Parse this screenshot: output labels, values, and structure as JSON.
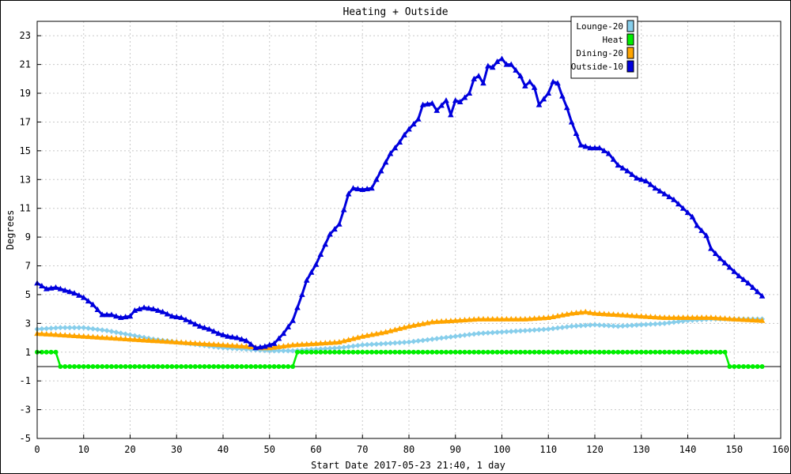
{
  "chart_data": {
    "type": "line",
    "title": "Heating + Outside",
    "xlabel": "Start Date 2017-05-23 21:40, 1 day",
    "ylabel": "Degrees",
    "xlim": [
      0,
      160
    ],
    "ylim": [
      -5,
      24
    ],
    "x_ticks": [
      0,
      10,
      20,
      30,
      40,
      50,
      60,
      70,
      80,
      90,
      100,
      110,
      120,
      130,
      140,
      150,
      160
    ],
    "y_ticks": [
      -5,
      -3,
      -1,
      1,
      3,
      5,
      7,
      9,
      11,
      13,
      15,
      17,
      19,
      21,
      23
    ],
    "grid": true,
    "zero_line": true,
    "legend_position": "top-right",
    "series": [
      {
        "name": "Lounge-20",
        "color": "#87ceeb",
        "marker": "diamond",
        "points": [
          [
            0,
            2.6
          ],
          [
            5,
            2.7
          ],
          [
            10,
            2.7
          ],
          [
            15,
            2.5
          ],
          [
            20,
            2.2
          ],
          [
            25,
            1.9
          ],
          [
            30,
            1.7
          ],
          [
            35,
            1.5
          ],
          [
            40,
            1.3
          ],
          [
            45,
            1.2
          ],
          [
            50,
            1.1
          ],
          [
            55,
            1.1
          ],
          [
            60,
            1.2
          ],
          [
            65,
            1.3
          ],
          [
            70,
            1.5
          ],
          [
            75,
            1.6
          ],
          [
            80,
            1.7
          ],
          [
            85,
            1.9
          ],
          [
            90,
            2.1
          ],
          [
            95,
            2.3
          ],
          [
            100,
            2.4
          ],
          [
            105,
            2.5
          ],
          [
            110,
            2.6
          ],
          [
            115,
            2.8
          ],
          [
            120,
            2.9
          ],
          [
            125,
            2.8
          ],
          [
            130,
            2.9
          ],
          [
            135,
            3.0
          ],
          [
            140,
            3.2
          ],
          [
            145,
            3.3
          ],
          [
            150,
            3.3
          ],
          [
            156,
            3.3
          ]
        ]
      },
      {
        "name": "Heat",
        "color": "#00ee00",
        "marker": "circle",
        "points": [
          [
            0,
            1
          ],
          [
            4,
            1
          ],
          [
            5,
            0
          ],
          [
            55,
            0
          ],
          [
            56,
            1
          ],
          [
            148,
            1
          ],
          [
            149,
            0
          ],
          [
            156,
            0
          ]
        ]
      },
      {
        "name": "Dining-20",
        "color": "#ffa500",
        "marker": "triangle",
        "points": [
          [
            0,
            2.3
          ],
          [
            5,
            2.2
          ],
          [
            10,
            2.1
          ],
          [
            15,
            2.0
          ],
          [
            20,
            1.9
          ],
          [
            25,
            1.8
          ],
          [
            30,
            1.7
          ],
          [
            35,
            1.6
          ],
          [
            40,
            1.5
          ],
          [
            45,
            1.4
          ],
          [
            48,
            1.3
          ],
          [
            50,
            1.3
          ],
          [
            55,
            1.5
          ],
          [
            60,
            1.6
          ],
          [
            65,
            1.7
          ],
          [
            70,
            2.1
          ],
          [
            75,
            2.4
          ],
          [
            80,
            2.8
          ],
          [
            85,
            3.1
          ],
          [
            90,
            3.2
          ],
          [
            95,
            3.3
          ],
          [
            100,
            3.3
          ],
          [
            105,
            3.3
          ],
          [
            110,
            3.4
          ],
          [
            115,
            3.7
          ],
          [
            118,
            3.8
          ],
          [
            120,
            3.7
          ],
          [
            125,
            3.6
          ],
          [
            130,
            3.5
          ],
          [
            135,
            3.4
          ],
          [
            140,
            3.4
          ],
          [
            145,
            3.4
          ],
          [
            150,
            3.3
          ],
          [
            156,
            3.2
          ]
        ]
      },
      {
        "name": "Outside-10",
        "color": "#0000dd",
        "marker": "triangle",
        "points": [
          [
            0,
            5.8
          ],
          [
            2,
            5.4
          ],
          [
            4,
            5.5
          ],
          [
            6,
            5.3
          ],
          [
            8,
            5.1
          ],
          [
            10,
            4.8
          ],
          [
            12,
            4.3
          ],
          [
            14,
            3.6
          ],
          [
            16,
            3.6
          ],
          [
            18,
            3.4
          ],
          [
            20,
            3.5
          ],
          [
            21,
            3.9
          ],
          [
            23,
            4.1
          ],
          [
            25,
            4.0
          ],
          [
            27,
            3.8
          ],
          [
            29,
            3.5
          ],
          [
            31,
            3.4
          ],
          [
            33,
            3.1
          ],
          [
            35,
            2.8
          ],
          [
            37,
            2.6
          ],
          [
            39,
            2.3
          ],
          [
            41,
            2.1
          ],
          [
            43,
            2.0
          ],
          [
            45,
            1.8
          ],
          [
            47,
            1.3
          ],
          [
            49,
            1.4
          ],
          [
            51,
            1.6
          ],
          [
            53,
            2.3
          ],
          [
            55,
            3.2
          ],
          [
            56,
            4.1
          ],
          [
            57,
            5.0
          ],
          [
            58,
            6.0
          ],
          [
            60,
            7.1
          ],
          [
            62,
            8.5
          ],
          [
            63,
            9.2
          ],
          [
            65,
            9.9
          ],
          [
            66,
            10.9
          ],
          [
            67,
            12.0
          ],
          [
            68,
            12.4
          ],
          [
            70,
            12.3
          ],
          [
            72,
            12.4
          ],
          [
            74,
            13.6
          ],
          [
            76,
            14.8
          ],
          [
            78,
            15.6
          ],
          [
            79,
            16.1
          ],
          [
            80,
            16.5
          ],
          [
            82,
            17.2
          ],
          [
            83,
            18.2
          ],
          [
            85,
            18.3
          ],
          [
            86,
            17.8
          ],
          [
            88,
            18.5
          ],
          [
            89,
            17.5
          ],
          [
            90,
            18.5
          ],
          [
            91,
            18.4
          ],
          [
            93,
            19.0
          ],
          [
            94,
            20.0
          ],
          [
            95,
            20.2
          ],
          [
            96,
            19.7
          ],
          [
            97,
            20.9
          ],
          [
            98,
            20.8
          ],
          [
            99,
            21.2
          ],
          [
            100,
            21.4
          ],
          [
            101,
            21.0
          ],
          [
            102,
            21.0
          ],
          [
            103,
            20.6
          ],
          [
            104,
            20.2
          ],
          [
            105,
            19.5
          ],
          [
            106,
            19.8
          ],
          [
            107,
            19.4
          ],
          [
            108,
            18.2
          ],
          [
            109,
            18.6
          ],
          [
            110,
            19.0
          ],
          [
            111,
            19.8
          ],
          [
            112,
            19.7
          ],
          [
            113,
            18.8
          ],
          [
            114,
            18.0
          ],
          [
            115,
            17.0
          ],
          [
            116,
            16.2
          ],
          [
            117,
            15.4
          ],
          [
            119,
            15.2
          ],
          [
            121,
            15.2
          ],
          [
            123,
            14.8
          ],
          [
            125,
            14.0
          ],
          [
            127,
            13.6
          ],
          [
            129,
            13.1
          ],
          [
            131,
            12.9
          ],
          [
            133,
            12.4
          ],
          [
            135,
            12.0
          ],
          [
            137,
            11.6
          ],
          [
            139,
            11.0
          ],
          [
            141,
            10.4
          ],
          [
            142,
            9.8
          ],
          [
            144,
            9.1
          ],
          [
            145,
            8.2
          ],
          [
            147,
            7.5
          ],
          [
            149,
            6.9
          ],
          [
            151,
            6.3
          ],
          [
            153,
            5.8
          ],
          [
            155,
            5.2
          ],
          [
            156,
            4.9
          ]
        ]
      }
    ]
  }
}
